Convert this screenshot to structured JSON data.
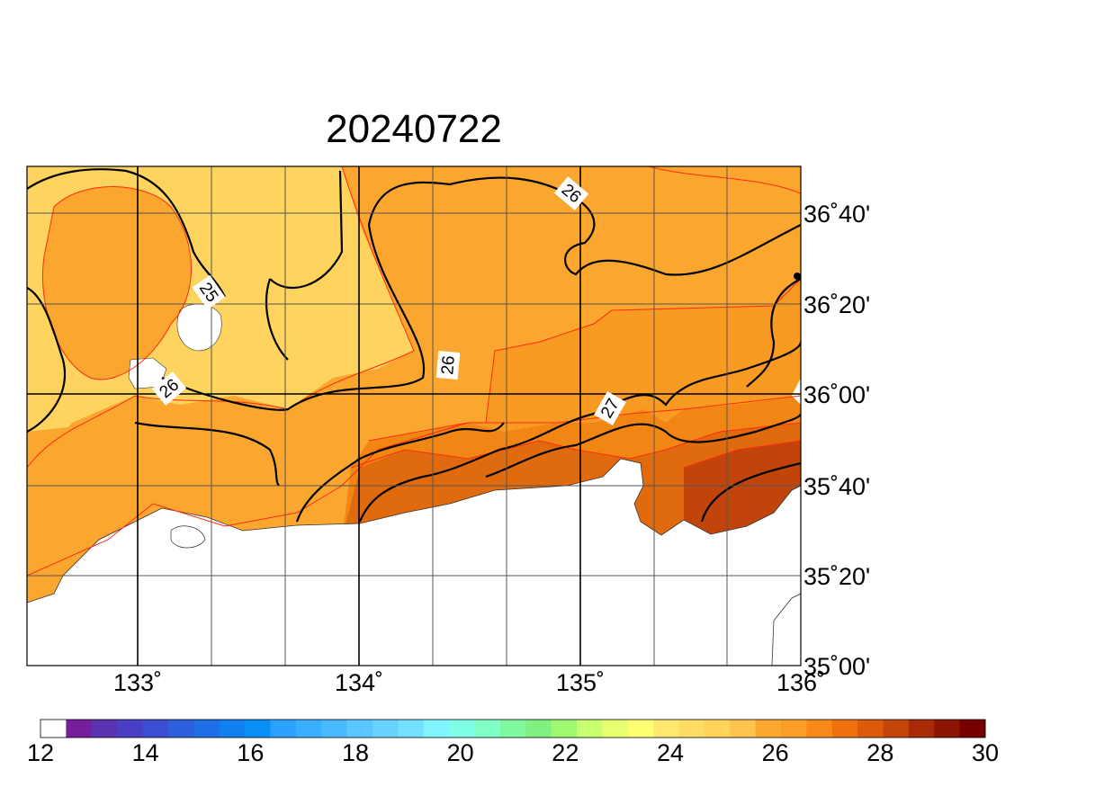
{
  "title": "20240722",
  "longitude_labels": [
    "133˚",
    "134˚",
    "135˚",
    "136˚"
  ],
  "latitude_labels": [
    "35˚00'",
    "35˚20'",
    "35˚40'",
    "36˚00'",
    "36˚20'",
    "36˚40'"
  ],
  "contour_labels": [
    "25",
    "26",
    "26",
    "26",
    "27"
  ],
  "colorbar": {
    "labels": [
      "12",
      "14",
      "16",
      "18",
      "20",
      "22",
      "24",
      "26",
      "28",
      "30"
    ],
    "colors": [
      "#ffffff",
      "#761e9c",
      "#5a33b0",
      "#4a3fc4",
      "#3c4fd2",
      "#2c5fdc",
      "#1f6fe6",
      "#1080f0",
      "#0a8ef8",
      "#2aa0ff",
      "#3aaeff",
      "#4abaff",
      "#5ac6ff",
      "#68d2ff",
      "#74e0ff",
      "#80f4ff",
      "#80ffe8",
      "#80ffc8",
      "#80f8a0",
      "#80f080",
      "#a0f870",
      "#c8ff70",
      "#e8ff70",
      "#ffff70",
      "#ffe870",
      "#ffdc64",
      "#ffd25a",
      "#ffc450",
      "#fca830",
      "#fb9e28",
      "#f98a1a",
      "#f07010",
      "#dc5a0c",
      "#c4460a",
      "#a82a06",
      "#8c1402",
      "#760000"
    ]
  }
}
